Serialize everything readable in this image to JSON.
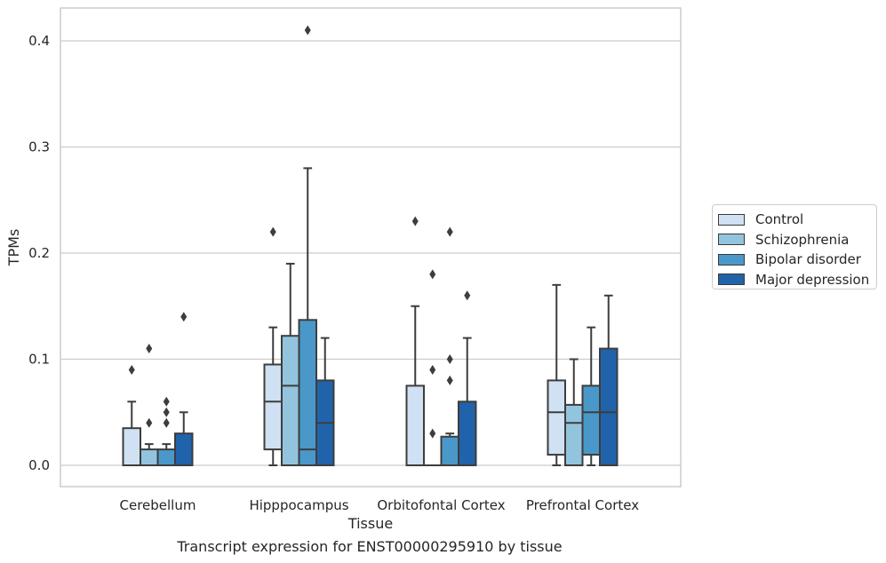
{
  "caption": "Transcript expression for ENST00000295910 by tissue",
  "legend": [
    {
      "label": "Control",
      "color": "#cfe1f2"
    },
    {
      "label": "Schizophrenia",
      "color": "#93c4de"
    },
    {
      "label": "Bipolar disorder",
      "color": "#4a98c9"
    },
    {
      "label": "Major depression",
      "color": "#2163aa"
    }
  ],
  "chart_data": {
    "type": "box",
    "xlabel": "Tissue",
    "ylabel": "TPMs",
    "ylim": [
      -0.02,
      0.43
    ],
    "yticks": [
      0.0,
      0.1,
      0.2,
      0.3,
      0.4
    ],
    "ytick_labels": [
      "0.0",
      "0.1",
      "0.2",
      "0.3",
      "0.4"
    ],
    "grid": "horizontal",
    "legend_position": "right",
    "categories": [
      "Cerebellum",
      "Hipppocampus",
      "Orbitofontal Cortex",
      "Prefrontal Cortex"
    ],
    "series": [
      {
        "name": "Control",
        "color": "#cfe1f2",
        "boxes": [
          {
            "q1": 0.0,
            "median": 0.0,
            "q3": 0.035,
            "whislo": 0.0,
            "whishi": 0.06,
            "fliers": [
              0.09
            ]
          },
          {
            "q1": 0.015,
            "median": 0.06,
            "q3": 0.095,
            "whislo": 0.0,
            "whishi": 0.13,
            "fliers": [
              0.22
            ]
          },
          {
            "q1": 0.0,
            "median": 0.0,
            "q3": 0.075,
            "whislo": 0.0,
            "whishi": 0.15,
            "fliers": [
              0.23
            ]
          },
          {
            "q1": 0.01,
            "median": 0.05,
            "q3": 0.08,
            "whislo": 0.0,
            "whishi": 0.17,
            "fliers": []
          }
        ]
      },
      {
        "name": "Schizophrenia",
        "color": "#93c4de",
        "boxes": [
          {
            "q1": 0.0,
            "median": 0.0,
            "q3": 0.015,
            "whislo": 0.0,
            "whishi": 0.02,
            "fliers": [
              0.04,
              0.11
            ]
          },
          {
            "q1": 0.0,
            "median": 0.075,
            "q3": 0.122,
            "whislo": 0.0,
            "whishi": 0.19,
            "fliers": []
          },
          {
            "q1": 0.0,
            "median": 0.0,
            "q3": 0.0,
            "whislo": 0.0,
            "whishi": 0.0,
            "fliers": [
              0.03,
              0.09,
              0.18
            ]
          },
          {
            "q1": 0.0,
            "median": 0.04,
            "q3": 0.057,
            "whislo": 0.0,
            "whishi": 0.1,
            "fliers": []
          }
        ]
      },
      {
        "name": "Bipolar disorder",
        "color": "#4a98c9",
        "boxes": [
          {
            "q1": 0.0,
            "median": 0.0,
            "q3": 0.015,
            "whislo": 0.0,
            "whishi": 0.02,
            "fliers": [
              0.04,
              0.05,
              0.06
            ]
          },
          {
            "q1": 0.0,
            "median": 0.015,
            "q3": 0.137,
            "whislo": 0.0,
            "whishi": 0.28,
            "fliers": [
              0.41
            ]
          },
          {
            "q1": 0.0,
            "median": 0.0,
            "q3": 0.027,
            "whislo": 0.0,
            "whishi": 0.03,
            "fliers": [
              0.08,
              0.1,
              0.22
            ]
          },
          {
            "q1": 0.01,
            "median": 0.05,
            "q3": 0.075,
            "whislo": 0.0,
            "whishi": 0.13,
            "fliers": []
          }
        ]
      },
      {
        "name": "Major depression",
        "color": "#2163aa",
        "boxes": [
          {
            "q1": 0.0,
            "median": 0.0,
            "q3": 0.03,
            "whislo": 0.0,
            "whishi": 0.05,
            "fliers": [
              0.14
            ]
          },
          {
            "q1": 0.0,
            "median": 0.04,
            "q3": 0.08,
            "whislo": 0.0,
            "whishi": 0.12,
            "fliers": []
          },
          {
            "q1": 0.0,
            "median": 0.0,
            "q3": 0.06,
            "whislo": 0.0,
            "whishi": 0.12,
            "fliers": [
              0.16
            ]
          },
          {
            "q1": 0.0,
            "median": 0.05,
            "q3": 0.11,
            "whislo": 0.0,
            "whishi": 0.16,
            "fliers": []
          }
        ]
      }
    ]
  }
}
